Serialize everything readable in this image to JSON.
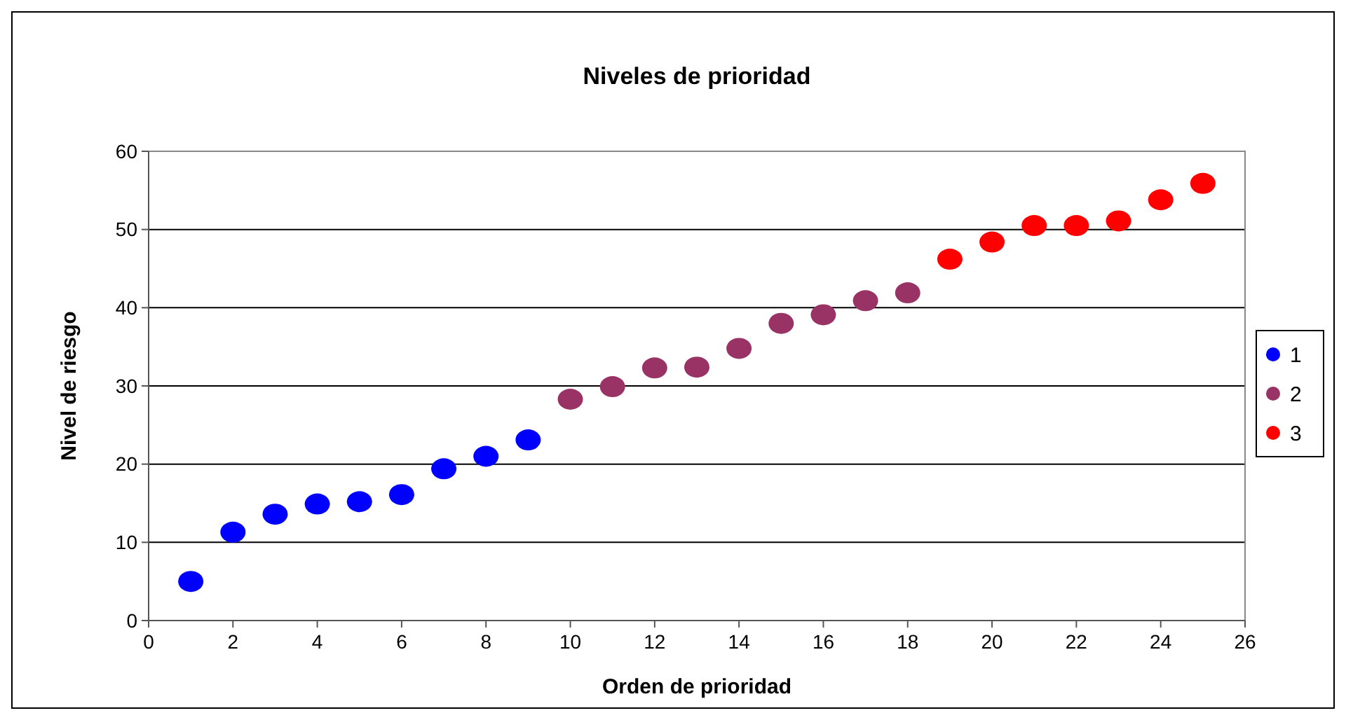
{
  "chart_data": {
    "type": "scatter",
    "title": "Niveles de prioridad",
    "xlabel": "Orden de prioridad",
    "ylabel": "Nivel de riesgo",
    "xlim": [
      0,
      26
    ],
    "xticks": [
      0,
      2,
      4,
      6,
      8,
      10,
      12,
      14,
      16,
      18,
      20,
      22,
      24,
      26
    ],
    "ylim": [
      0,
      60
    ],
    "yticks": [
      0,
      10,
      20,
      30,
      40,
      50,
      60
    ],
    "grid": "y",
    "legend": "right",
    "marker": "circle",
    "series": [
      {
        "name": "1",
        "color": "#0000ff",
        "x": [
          1,
          2,
          3,
          4,
          5,
          6,
          7,
          8,
          9
        ],
        "values": [
          5.0,
          11.3,
          13.6,
          14.9,
          15.2,
          16.1,
          19.4,
          21.0,
          23.1
        ]
      },
      {
        "name": "2",
        "color": "#993366",
        "x": [
          10,
          11,
          12,
          13,
          14,
          15,
          16,
          17,
          18
        ],
        "values": [
          28.3,
          29.9,
          32.3,
          32.4,
          34.8,
          38.0,
          39.1,
          40.9,
          41.9
        ]
      },
      {
        "name": "3",
        "color": "#ff0000",
        "x": [
          19,
          20,
          21,
          22,
          23,
          24,
          25
        ],
        "values": [
          46.2,
          48.4,
          50.5,
          50.5,
          51.1,
          53.8,
          55.9
        ]
      }
    ]
  }
}
